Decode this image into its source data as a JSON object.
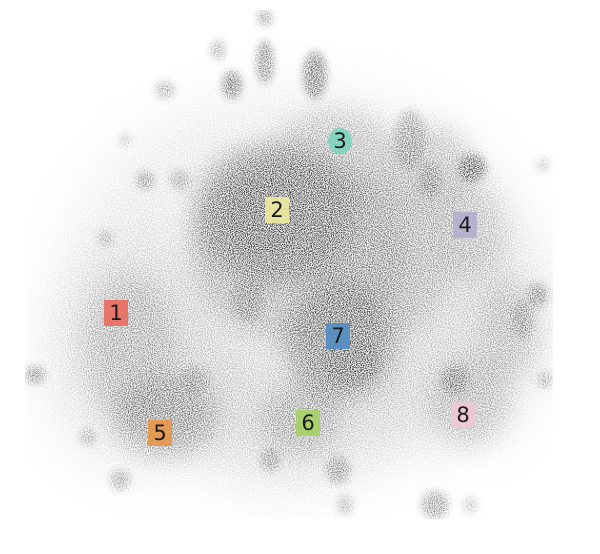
{
  "clusters": [
    {
      "label": "1",
      "color": "#e8756a"
    },
    {
      "label": "2",
      "color": "#e6e3a0"
    },
    {
      "label": "3",
      "color": "#86d3c0"
    },
    {
      "label": "4",
      "color": "#b7b0cf"
    },
    {
      "label": "5",
      "color": "#e39a55"
    },
    {
      "label": "6",
      "color": "#a9cf6e"
    },
    {
      "label": "7",
      "color": "#5b8fc0"
    },
    {
      "label": "8",
      "color": "#ecc8d6"
    }
  ]
}
